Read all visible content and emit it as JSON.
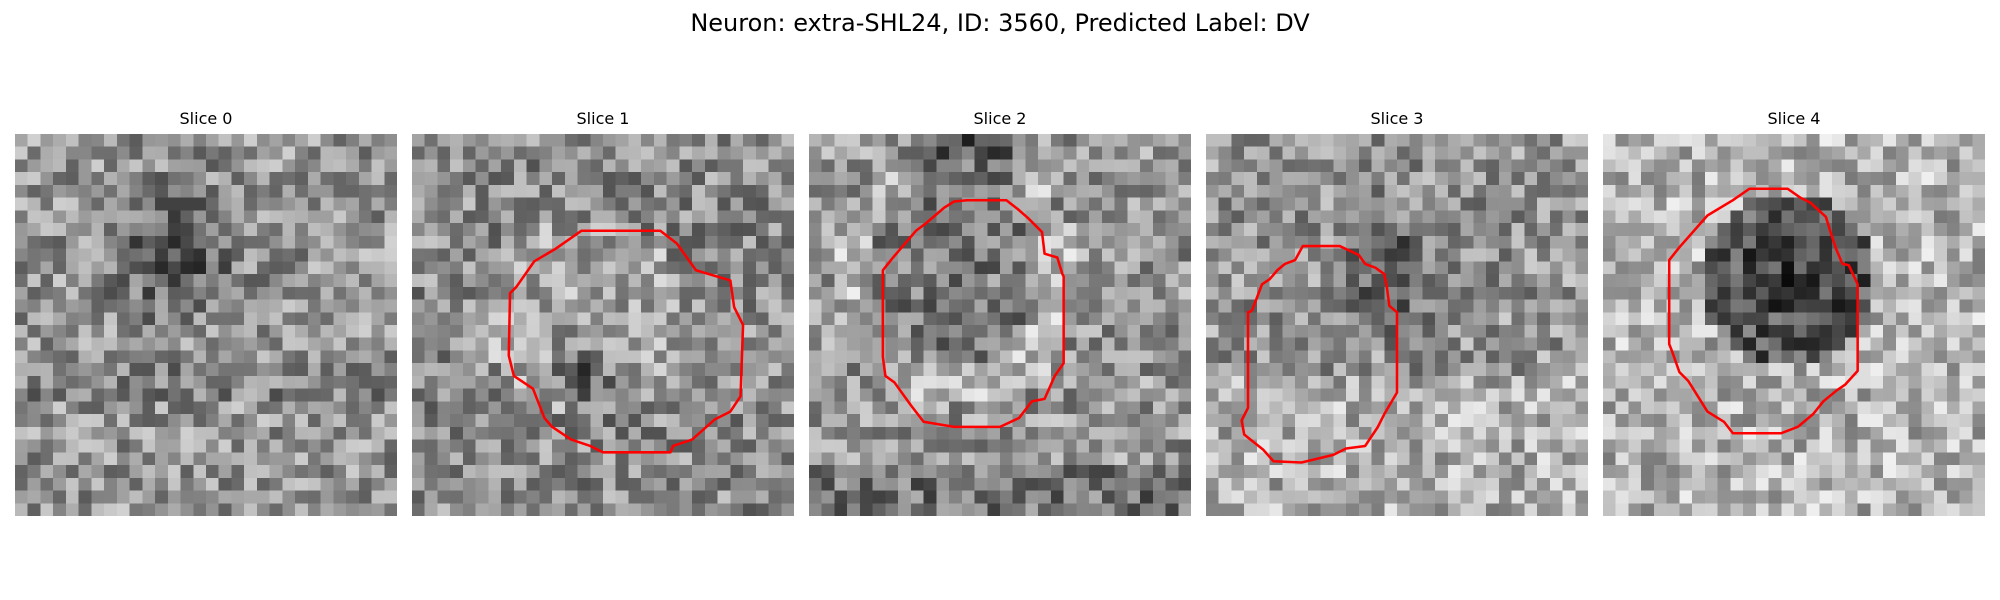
{
  "figure": {
    "title": "Neuron: extra-SHL24, ID: 3560, Predicted Label: DV"
  },
  "panels": [
    {
      "title": "Slice 0",
      "has_contour": false
    },
    {
      "title": "Slice 1",
      "has_contour": true
    },
    {
      "title": "Slice 2",
      "has_contour": true
    },
    {
      "title": "Slice 3",
      "has_contour": true
    },
    {
      "title": "Slice 4",
      "has_contour": true
    }
  ],
  "colors": {
    "contour": "#ff0000",
    "background": "#ffffff"
  }
}
